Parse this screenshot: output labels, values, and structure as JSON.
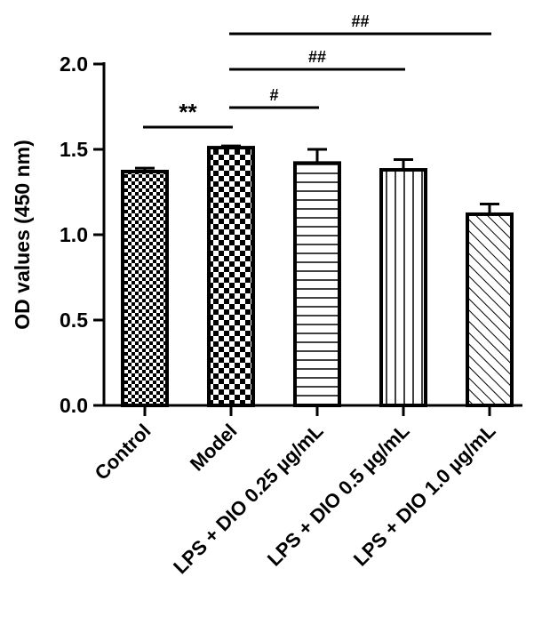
{
  "chart_data": {
    "type": "bar",
    "categories": [
      "Control",
      "Model",
      "LPS + DIO 0.25 µg/mL",
      "LPS + DIO 0.5 µg/mL",
      "LPS + DIO 1.0 µg/mL"
    ],
    "values": [
      1.37,
      1.51,
      1.42,
      1.38,
      1.12
    ],
    "errors": [
      0.02,
      0.01,
      0.08,
      0.06,
      0.06
    ],
    "patterns": [
      "fine-checker",
      "coarse-checker",
      "horizontal-lines",
      "vertical-lines",
      "diagonal-lines"
    ],
    "ylabel": "OD values (450 nm)",
    "xlabel": "",
    "title": "",
    "ylim": [
      0,
      2.0
    ],
    "yticks": [
      "0.0",
      "0.5",
      "1.0",
      "1.5",
      "2.0"
    ],
    "grid": false,
    "significance": [
      {
        "from": 0,
        "to": 1,
        "label": "**"
      },
      {
        "from": 1,
        "to": 2,
        "label": "#"
      },
      {
        "from": 1,
        "to": 3,
        "label": "##"
      },
      {
        "from": 1,
        "to": 4,
        "label": "##"
      }
    ]
  },
  "colors": {
    "ink": "#000000",
    "background": "#ffffff"
  }
}
